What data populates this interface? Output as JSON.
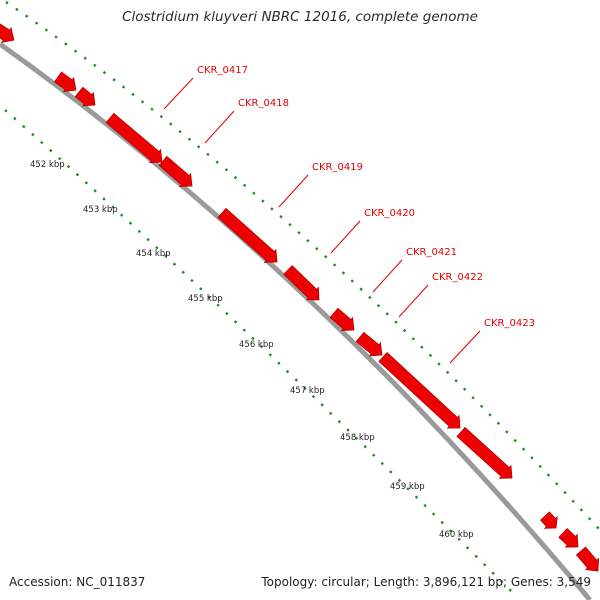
{
  "title": "Clostridium kluyveri NBRC 12016, complete genome",
  "footer": {
    "accession": "Accession: NC_011837",
    "summary": "Topology: circular; Length: 3,896,121 bp; Genes: 3,549"
  },
  "colors": {
    "gene": "#ee0000",
    "backbone": "#8a8a8a",
    "dots": "#1c8c1c",
    "label": "#e00000"
  },
  "kbp_labels": [
    "452 kbp",
    "453 kbp",
    "454 kbp",
    "455 kbp",
    "456 kbp",
    "457 kbp",
    "458 kbp",
    "459 kbp",
    "460 kbp"
  ],
  "genes": [
    {
      "label": ""
    },
    {
      "label": ""
    },
    {
      "label": "CKR_0417"
    },
    {
      "label": "CKR_0418"
    },
    {
      "label": "CKR_0419"
    },
    {
      "label": "CKR_0420"
    },
    {
      "label": "CKR_0421"
    },
    {
      "label": "CKR_0422"
    },
    {
      "label": "CKR_0423"
    },
    {
      "label": ""
    },
    {
      "label": ""
    },
    {
      "label": ""
    }
  ]
}
